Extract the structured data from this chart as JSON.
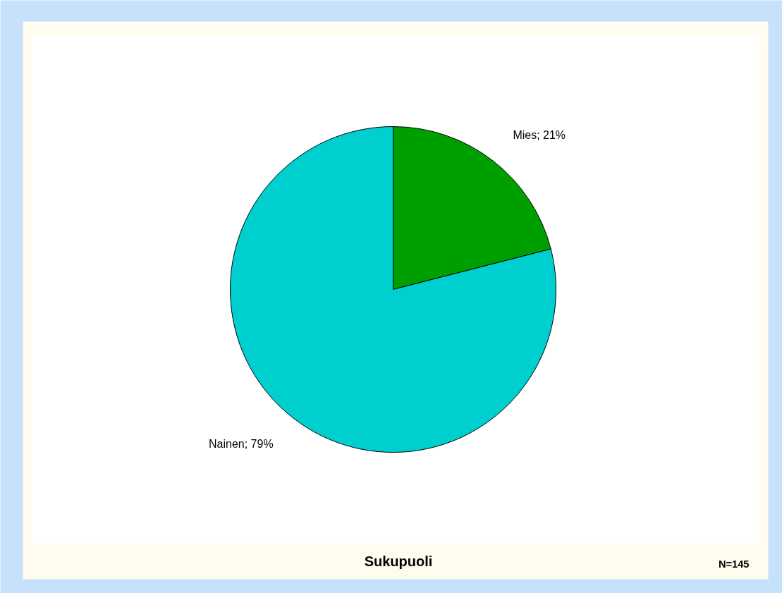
{
  "chart_data": {
    "type": "pie",
    "title": "Sukupuoli",
    "categories": [
      "Mies",
      "Nainen"
    ],
    "values": [
      21,
      79
    ],
    "colors": [
      "#009f00",
      "#00cfcf"
    ],
    "value_labels": [
      "21%",
      "79%"
    ],
    "annotations": [
      "N=145"
    ]
  }
}
